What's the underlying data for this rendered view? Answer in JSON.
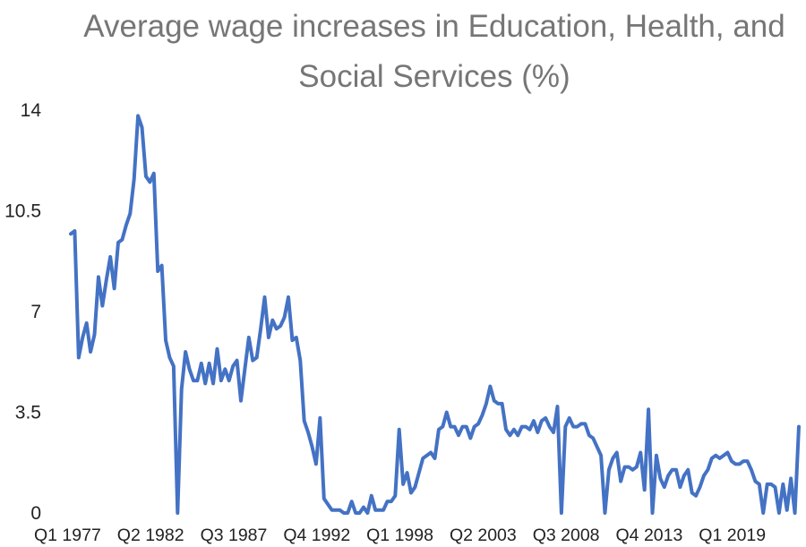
{
  "chart_data": {
    "type": "line",
    "title_lines": [
      "Average wage increases in Education, Health, and",
      "Social Services (%)"
    ],
    "xlabel": "",
    "ylabel": "",
    "ylim": [
      0,
      14
    ],
    "yticks": [
      0,
      3.5,
      7,
      10.5,
      14
    ],
    "ytick_labels": [
      "0",
      "3.5",
      "7",
      "10.5",
      "14"
    ],
    "xtick_labels": [
      "Q1 1977",
      "Q2 1982",
      "Q3 1987",
      "Q4 1992",
      "Q1 1998",
      "Q2 2003",
      "Q3 2008",
      "Q4 2013",
      "Q1 2019"
    ],
    "xtick_indices": [
      0,
      21,
      42,
      63,
      84,
      105,
      126,
      147,
      168
    ],
    "grid": false,
    "legend": "none",
    "line_color": "#4472C4",
    "series": [
      {
        "values": [
          9.7,
          9.8,
          5.4,
          6.1,
          6.6,
          5.6,
          6.2,
          8.2,
          7.2,
          8.1,
          8.9,
          7.8,
          9.4,
          9.5,
          10,
          10.4,
          11.6,
          13.8,
          13.4,
          11.7,
          11.5,
          11.8,
          8.4,
          8.6,
          6,
          5.4,
          5.1,
          0,
          4.3,
          5.6,
          5,
          4.6,
          4.6,
          5.2,
          4.5,
          5.2,
          4.5,
          5.7,
          4.6,
          5,
          4.6,
          5.1,
          5.3,
          3.9,
          5,
          6.1,
          5.3,
          5.4,
          6.4,
          7.5,
          6.1,
          6.7,
          6.4,
          6.5,
          6.8,
          7.5,
          6,
          6.1,
          5.3,
          3.2,
          2.8,
          2.3,
          1.7,
          3.3,
          0.5,
          0.3,
          0.1,
          0.1,
          0.1,
          0,
          0,
          0.4,
          0,
          0,
          0.2,
          0,
          0.6,
          0.1,
          0.1,
          0.1,
          0.4,
          0.4,
          0.6,
          2.9,
          1,
          1.4,
          0.7,
          0.9,
          1.4,
          1.9,
          2,
          2.1,
          1.9,
          2.9,
          3,
          3.5,
          3,
          3,
          2.7,
          3,
          3,
          2.6,
          3,
          3.1,
          3.4,
          3.8,
          4.4,
          3.9,
          3.8,
          3.8,
          2.9,
          2.7,
          2.9,
          2.7,
          3,
          3,
          2.9,
          3.2,
          2.8,
          3.2,
          3.3,
          3,
          2.8,
          3.7,
          0,
          3,
          3.3,
          3,
          3,
          3.1,
          3.1,
          2.7,
          2.6,
          2.3,
          2,
          0,
          1.5,
          1.9,
          2.1,
          1.1,
          1.6,
          1.6,
          1.5,
          1.6,
          2.1,
          0.8,
          3.6,
          0,
          2,
          1.2,
          0.9,
          1.3,
          1.5,
          1.5,
          0.9,
          1.3,
          1.5,
          0.7,
          0.6,
          0.9,
          1.3,
          1.5,
          1.9,
          2,
          1.9,
          2,
          2.1,
          1.8,
          1.7,
          1.7,
          1.8,
          1.8,
          1.5,
          1.1,
          1,
          0,
          1,
          1,
          0.9,
          0,
          1,
          0.1,
          1.2,
          0,
          3
        ]
      }
    ]
  }
}
